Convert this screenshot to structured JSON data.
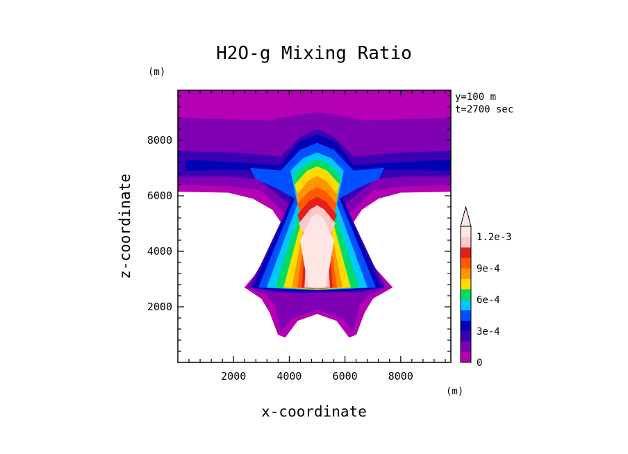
{
  "chart_data": {
    "type": "heatmap",
    "title": "H2O-g Mixing Ratio",
    "xlabel": "x-coordinate",
    "ylabel": "z-coordinate",
    "x_unit": "(m)",
    "y_unit": "(m)",
    "annotations": [
      "y=100 m",
      "t=2700 sec"
    ],
    "xlim": [
      0,
      9800
    ],
    "ylim": [
      0,
      9800
    ],
    "x_ticks": [
      "2000",
      "4000",
      "6000",
      "8000"
    ],
    "y_ticks": [
      "2000",
      "4000",
      "6000",
      "8000"
    ],
    "colorbar": {
      "labels": [
        "0",
        "3e-4",
        "6e-4",
        "9e-4",
        "1.2e-3"
      ],
      "level_step": 0.0001,
      "colors": [
        "#b400b4",
        "#8000b4",
        "#3a00b4",
        "#0000b4",
        "#0050ff",
        "#00c8ff",
        "#00dc64",
        "#ffdc00",
        "#ff9600",
        "#ff5a00",
        "#e61e1e",
        "#ffc8c8",
        "#ffe6e6"
      ]
    },
    "plumes": [
      {
        "level": 0,
        "color": "#b400b4",
        "points": [
          [
            0,
            9800
          ],
          [
            9800,
            9800
          ],
          [
            9800,
            6150
          ],
          [
            8000,
            6120
          ],
          [
            7200,
            5900
          ],
          [
            6600,
            5500
          ],
          [
            6000,
            4600
          ],
          [
            7700,
            2700
          ],
          [
            7000,
            2300
          ],
          [
            6700,
            1800
          ],
          [
            6400,
            1000
          ],
          [
            6150,
            900
          ],
          [
            5700,
            1500
          ],
          [
            5000,
            1750
          ],
          [
            4300,
            1500
          ],
          [
            3850,
            900
          ],
          [
            3600,
            1000
          ],
          [
            3300,
            1800
          ],
          [
            3000,
            2300
          ],
          [
            2400,
            2700
          ],
          [
            4000,
            4600
          ],
          [
            3400,
            5500
          ],
          [
            2700,
            5900
          ],
          [
            1800,
            6120
          ],
          [
            0,
            6150
          ]
        ]
      },
      {
        "level": 1,
        "color": "#8000b4",
        "points": [
          [
            0,
            8800
          ],
          [
            1800,
            8750
          ],
          [
            3300,
            8700
          ],
          [
            4300,
            8900
          ],
          [
            5000,
            9000
          ],
          [
            5700,
            8900
          ],
          [
            6700,
            8700
          ],
          [
            8200,
            8750
          ],
          [
            9800,
            8800
          ],
          [
            9800,
            6400
          ],
          [
            8100,
            6350
          ],
          [
            7000,
            6200
          ],
          [
            6000,
            5200
          ],
          [
            7500,
            2700
          ],
          [
            6800,
            2400
          ],
          [
            6500,
            2050
          ],
          [
            6300,
            1100
          ],
          [
            5900,
            1600
          ],
          [
            5000,
            1900
          ],
          [
            4100,
            1600
          ],
          [
            3700,
            1100
          ],
          [
            3500,
            2050
          ],
          [
            3200,
            2400
          ],
          [
            2500,
            2700
          ],
          [
            4000,
            5200
          ],
          [
            3000,
            6200
          ],
          [
            1900,
            6350
          ],
          [
            0,
            6400
          ]
        ]
      },
      {
        "level": 2,
        "color": "#3a00b4",
        "points": [
          [
            0,
            7600
          ],
          [
            2000,
            7550
          ],
          [
            3700,
            7400
          ],
          [
            4400,
            8100
          ],
          [
            5000,
            8400
          ],
          [
            5600,
            8100
          ],
          [
            6300,
            7400
          ],
          [
            8000,
            7550
          ],
          [
            9800,
            7600
          ],
          [
            9800,
            6700
          ],
          [
            8200,
            6700
          ],
          [
            7100,
            6600
          ],
          [
            6000,
            5700
          ],
          [
            7400,
            2700
          ],
          [
            6600,
            2550
          ],
          [
            4500,
            2500
          ],
          [
            3400,
            2550
          ],
          [
            2600,
            2700
          ],
          [
            4000,
            5700
          ],
          [
            2900,
            6600
          ],
          [
            1800,
            6700
          ],
          [
            0,
            6700
          ]
        ]
      },
      {
        "level": 3,
        "color": "#0000b4",
        "points": [
          [
            300,
            7300
          ],
          [
            2000,
            7200
          ],
          [
            3700,
            7100
          ],
          [
            4300,
            7900
          ],
          [
            5000,
            8200
          ],
          [
            5700,
            7900
          ],
          [
            6300,
            7100
          ],
          [
            8000,
            7200
          ],
          [
            9800,
            7300
          ],
          [
            9800,
            6900
          ],
          [
            8000,
            6950
          ],
          [
            6900,
            6900
          ],
          [
            5900,
            5900
          ],
          [
            7300,
            2700
          ],
          [
            6000,
            2580
          ],
          [
            5000,
            2560
          ],
          [
            4000,
            2580
          ],
          [
            2700,
            2700
          ],
          [
            4100,
            5900
          ],
          [
            3100,
            6900
          ],
          [
            2000,
            6950
          ],
          [
            300,
            6900
          ]
        ]
      },
      {
        "level": 4,
        "color": "#0050ff",
        "points": [
          [
            2600,
            7000
          ],
          [
            3700,
            6900
          ],
          [
            4400,
            7650
          ],
          [
            5000,
            7900
          ],
          [
            5600,
            7650
          ],
          [
            6300,
            6900
          ],
          [
            7400,
            7000
          ],
          [
            7200,
            6600
          ],
          [
            6500,
            6300
          ],
          [
            5800,
            5900
          ],
          [
            7100,
            2700
          ],
          [
            5000,
            2600
          ],
          [
            2900,
            2700
          ],
          [
            4200,
            5900
          ],
          [
            3500,
            6300
          ],
          [
            2800,
            6600
          ]
        ]
      },
      {
        "level": 5,
        "color": "#00c8ff",
        "points": [
          [
            4050,
            6900
          ],
          [
            4500,
            7350
          ],
          [
            5000,
            7550
          ],
          [
            5500,
            7350
          ],
          [
            5950,
            6900
          ],
          [
            5700,
            5700
          ],
          [
            6800,
            2700
          ],
          [
            5000,
            2610
          ],
          [
            3200,
            2700
          ],
          [
            4300,
            5700
          ]
        ]
      },
      {
        "level": 6,
        "color": "#00dc64",
        "points": [
          [
            4150,
            6700
          ],
          [
            4600,
            7150
          ],
          [
            5000,
            7300
          ],
          [
            5400,
            7150
          ],
          [
            5850,
            6700
          ],
          [
            5600,
            5500
          ],
          [
            6500,
            2700
          ],
          [
            5000,
            2620
          ],
          [
            3500,
            2700
          ],
          [
            4400,
            5500
          ]
        ]
      },
      {
        "level": 7,
        "color": "#ffdc00",
        "points": [
          [
            4200,
            6400
          ],
          [
            4650,
            6900
          ],
          [
            5000,
            7050
          ],
          [
            5350,
            6900
          ],
          [
            5800,
            6400
          ],
          [
            5500,
            5300
          ],
          [
            6200,
            2700
          ],
          [
            5000,
            2630
          ],
          [
            3800,
            2700
          ],
          [
            4500,
            5300
          ]
        ]
      },
      {
        "level": 8,
        "color": "#ff9600",
        "points": [
          [
            4250,
            6000
          ],
          [
            4700,
            6550
          ],
          [
            5000,
            6700
          ],
          [
            5300,
            6550
          ],
          [
            5750,
            6000
          ],
          [
            5450,
            5000
          ],
          [
            5900,
            2700
          ],
          [
            5000,
            2640
          ],
          [
            4100,
            2700
          ],
          [
            4550,
            5000
          ]
        ]
      },
      {
        "level": 9,
        "color": "#ff5a00",
        "points": [
          [
            4300,
            5700
          ],
          [
            4700,
            6150
          ],
          [
            5000,
            6300
          ],
          [
            5300,
            6150
          ],
          [
            5700,
            5700
          ],
          [
            5400,
            4800
          ],
          [
            5700,
            2700
          ],
          [
            5000,
            2650
          ],
          [
            4300,
            2700
          ],
          [
            4600,
            4800
          ]
        ]
      },
      {
        "level": 10,
        "color": "#e61e1e",
        "points": [
          [
            4300,
            5300
          ],
          [
            4700,
            5800
          ],
          [
            5000,
            5950
          ],
          [
            5300,
            5800
          ],
          [
            5700,
            5300
          ],
          [
            5400,
            4600
          ],
          [
            5550,
            2700
          ],
          [
            5000,
            2660
          ],
          [
            4450,
            2700
          ],
          [
            4600,
            4600
          ]
        ]
      },
      {
        "level": 11,
        "color": "#ffc8c8",
        "points": [
          [
            4350,
            5000
          ],
          [
            4750,
            5500
          ],
          [
            5000,
            5650
          ],
          [
            5250,
            5500
          ],
          [
            5650,
            5000
          ],
          [
            5350,
            4400
          ],
          [
            5450,
            2700
          ],
          [
            5000,
            2670
          ],
          [
            4550,
            2700
          ],
          [
            4650,
            4400
          ]
        ]
      },
      {
        "level": 12,
        "color": "#ffe6e6",
        "points": [
          [
            4400,
            4400
          ],
          [
            4800,
            5200
          ],
          [
            5000,
            5350
          ],
          [
            5200,
            5200
          ],
          [
            5600,
            4400
          ],
          [
            5400,
            3200
          ],
          [
            5300,
            2750
          ],
          [
            5000,
            2720
          ],
          [
            4700,
            2750
          ],
          [
            4600,
            3200
          ]
        ]
      }
    ]
  }
}
